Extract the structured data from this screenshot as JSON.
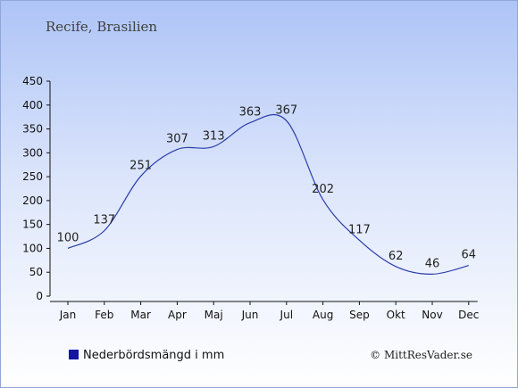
{
  "chart_data": {
    "type": "line",
    "title": "Recife, Brasilien",
    "categories": [
      "Jan",
      "Feb",
      "Mar",
      "Apr",
      "Maj",
      "Jun",
      "Jul",
      "Aug",
      "Sep",
      "Okt",
      "Nov",
      "Dec"
    ],
    "series": [
      {
        "name": "Nederbördsmängd i mm",
        "values": [
          100,
          137,
          251,
          307,
          313,
          363,
          367,
          202,
          117,
          62,
          46,
          64
        ]
      }
    ],
    "ylim": [
      0,
      450
    ],
    "yticks": [
      0,
      50,
      100,
      150,
      200,
      250,
      300,
      350,
      400,
      450
    ],
    "grid": false,
    "legend_position": "bottom-left",
    "line_color": "#2a3daa",
    "legend_color": "#1414a0"
  },
  "footer": {
    "copyright": "© MittResVader.se"
  }
}
